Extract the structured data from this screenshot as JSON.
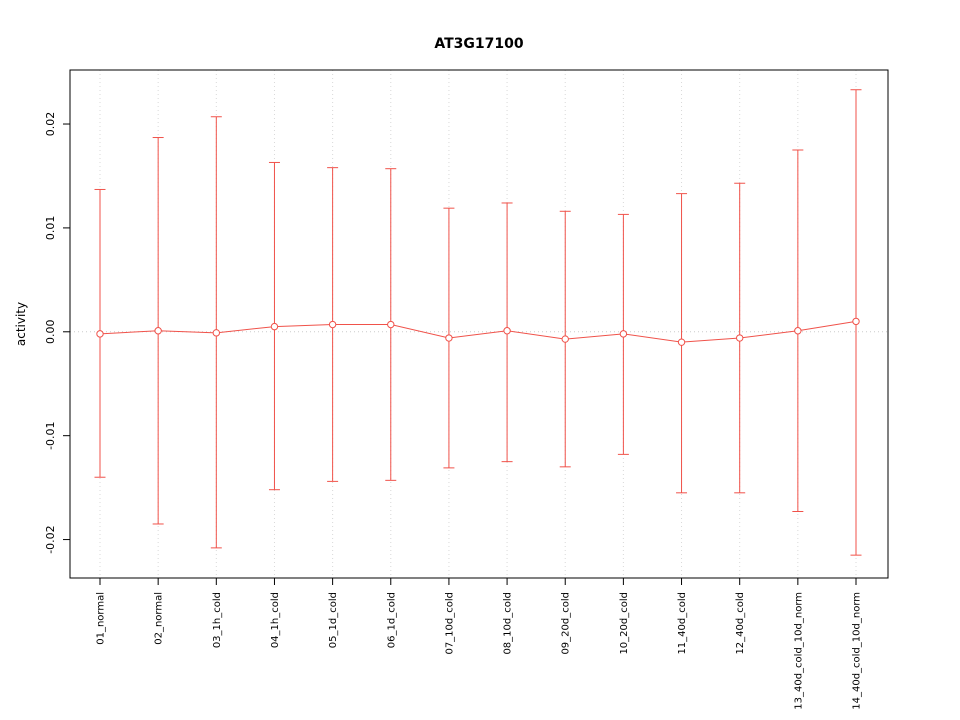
{
  "chart_data": {
    "type": "errorbar",
    "title": "AT3G17100",
    "ylabel": "activity",
    "xlabel": "",
    "categories": [
      "01_normal",
      "02_normal",
      "03_1h_cold",
      "04_1h_cold",
      "05_1d_cold",
      "06_1d_cold",
      "07_10d_cold",
      "08_10d_cold",
      "09_20d_cold",
      "10_20d_cold",
      "11_40d_cold",
      "12_40d_cold",
      "13_40d_cold_10d_norm",
      "14_40d_cold_10d_norm"
    ],
    "series": [
      {
        "name": "activity",
        "centers": [
          -0.0002,
          0.0001,
          -0.0001,
          0.0005,
          0.0007,
          0.0007,
          -0.0006,
          0.0001,
          -0.0007,
          -0.0002,
          -0.001,
          -0.0006,
          0.0001,
          0.001
        ],
        "uppers": [
          0.0137,
          0.0187,
          0.0207,
          0.0163,
          0.0158,
          0.0157,
          0.0119,
          0.0124,
          0.0116,
          0.0113,
          0.0133,
          0.0143,
          0.0175,
          0.0233
        ],
        "lowers": [
          -0.014,
          -0.0185,
          -0.0208,
          -0.0152,
          -0.0144,
          -0.0143,
          -0.0131,
          -0.0125,
          -0.013,
          -0.0118,
          -0.0155,
          -0.0155,
          -0.0173,
          -0.0215
        ]
      }
    ],
    "ylim": [
      -0.0237,
      0.0252
    ],
    "yticks": [
      -0.02,
      -0.01,
      0,
      0.01,
      0.02
    ],
    "ytick_labels": [
      "-0.02",
      "-0.01",
      "0.00",
      "0.01",
      "0.02"
    ],
    "grid": "dotted vertical gridline per category, dotted horizontal line at y=0",
    "legend": "none",
    "colors": {
      "series": "#f0524a",
      "grid": "#d9d9d9",
      "zero_line": "#cccccc",
      "axis": "#000000",
      "background": "#ffffff"
    }
  }
}
